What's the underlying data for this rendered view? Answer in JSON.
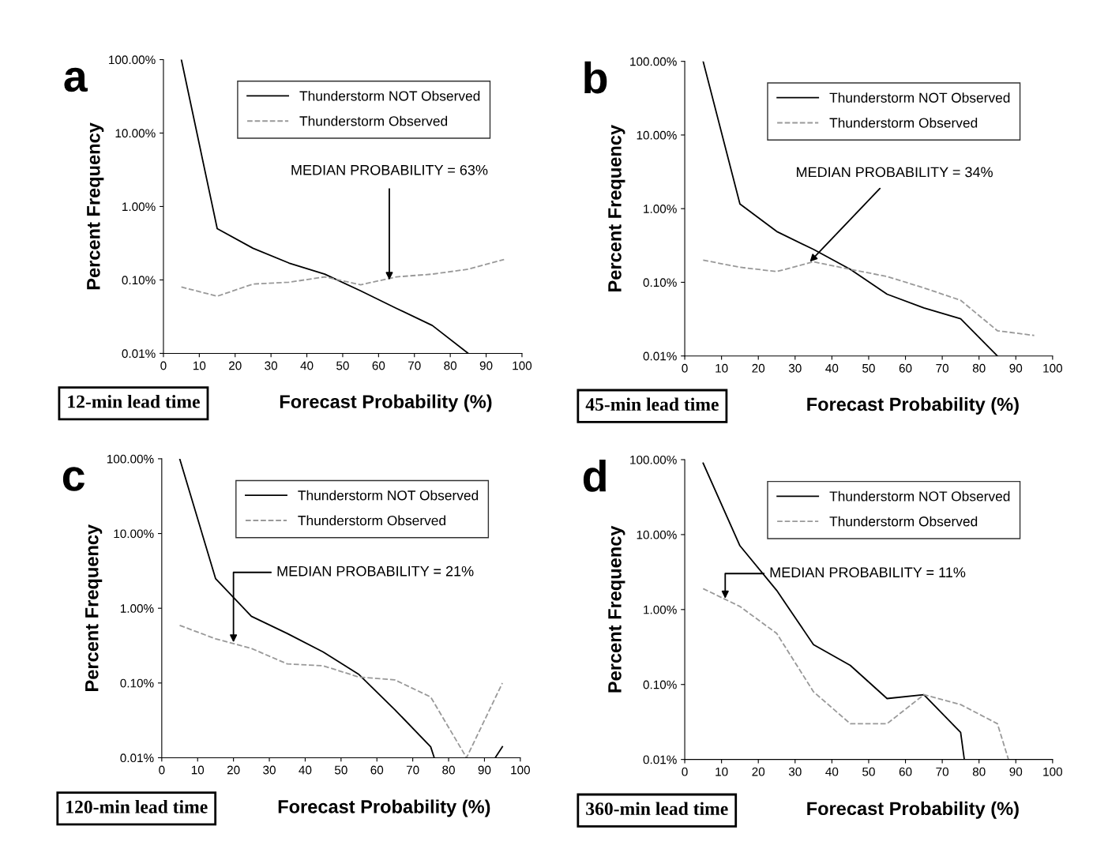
{
  "chart_data": [
    {
      "type": "line",
      "xlabel": "Forecast Probability (%)",
      "ylabel": "Percent Frequency",
      "log": "y",
      "xlim": [
        0,
        100
      ],
      "ylim": [
        0.01,
        100
      ],
      "xticks": [
        0,
        10,
        20,
        30,
        40,
        50,
        60,
        70,
        80,
        90,
        100
      ],
      "yticks": [
        {
          "value": 0.01,
          "label": "0.01%"
        },
        {
          "value": 0.1,
          "label": "0.10%"
        },
        {
          "value": 1,
          "label": "1.00%"
        },
        {
          "value": 10,
          "label": "10.00%"
        },
        {
          "value": 100,
          "label": "100.00%"
        }
      ],
      "grid": false,
      "legend": "top right",
      "series": [
        {
          "name": "Thunderstorm NOT Observed",
          "color": "#000000",
          "line_style": "solid",
          "x": [
            5,
            15,
            25,
            35,
            45,
            55,
            65,
            75,
            85
          ],
          "values": [
            100,
            0.5,
            0.27,
            0.17,
            0.12,
            0.071,
            0.041,
            0.024,
            0.01
          ]
        },
        {
          "name": "Thunderstorm Observed",
          "color": "#999999",
          "line_style": "dashed",
          "x": [
            5,
            15,
            25,
            35,
            45,
            55,
            65,
            75,
            85,
            95
          ],
          "values": [
            0.08,
            0.06,
            0.088,
            0.093,
            0.11,
            0.086,
            0.11,
            0.12,
            0.14,
            0.19
          ]
        }
      ],
      "annotations": [
        "a",
        "12-min lead time",
        {
          "text": "MEDIAN PROBABILITY = 63%",
          "x": 63,
          "y": 0.1
        }
      ]
    },
    {
      "type": "line",
      "xlabel": "Forecast Probability (%)",
      "ylabel": "Percent Frequency",
      "log": "y",
      "xlim": [
        0,
        100
      ],
      "ylim": [
        0.01,
        100
      ],
      "xticks": [
        0,
        10,
        20,
        30,
        40,
        50,
        60,
        70,
        80,
        90,
        100
      ],
      "yticks": [
        {
          "value": 0.01,
          "label": "0.01%"
        },
        {
          "value": 0.1,
          "label": "0.10%"
        },
        {
          "value": 1,
          "label": "1.00%"
        },
        {
          "value": 10,
          "label": "10.00%"
        },
        {
          "value": 100,
          "label": "100.00%"
        }
      ],
      "grid": false,
      "legend": "top right",
      "series": [
        {
          "name": "Thunderstorm NOT Observed",
          "color": "#000000",
          "line_style": "solid",
          "x": [
            5,
            15,
            25,
            35,
            45,
            55,
            65,
            75,
            85
          ],
          "values": [
            100,
            1.16,
            0.49,
            0.28,
            0.15,
            0.069,
            0.045,
            0.032,
            0.01
          ]
        },
        {
          "name": "Thunderstorm Observed",
          "color": "#999999",
          "line_style": "dashed",
          "x": [
            5,
            15,
            25,
            35,
            45,
            55,
            65,
            75,
            85,
            95
          ],
          "values": [
            0.2,
            0.16,
            0.14,
            0.19,
            0.15,
            0.12,
            0.084,
            0.057,
            0.022,
            0.019
          ]
        }
      ],
      "annotations": [
        "b",
        "45-min lead time",
        {
          "text": "MEDIAN PROBABILITY = 34%",
          "x": 34,
          "y": 0.19
        }
      ]
    },
    {
      "type": "line",
      "xlabel": "Forecast Probability (%)",
      "ylabel": "Percent Frequency",
      "log": "y",
      "xlim": [
        0,
        100
      ],
      "ylim": [
        0.01,
        100
      ],
      "xticks": [
        0,
        10,
        20,
        30,
        40,
        50,
        60,
        70,
        80,
        90,
        100
      ],
      "yticks": [
        {
          "value": 0.01,
          "label": "0.01%"
        },
        {
          "value": 0.1,
          "label": "0.10%"
        },
        {
          "value": 1,
          "label": "1.00%"
        },
        {
          "value": 10,
          "label": "10.00%"
        },
        {
          "value": 100,
          "label": "100.00%"
        }
      ],
      "grid": false,
      "legend": "top right",
      "series": [
        {
          "name": "Thunderstorm NOT Observed",
          "color": "#000000",
          "line_style": "solid",
          "x": [
            5,
            15,
            25,
            35,
            45,
            55,
            65,
            75,
            76,
            85,
            93,
            95
          ],
          "values": [
            100,
            2.5,
            0.78,
            0.46,
            0.26,
            0.13,
            0.044,
            0.014,
            0.01,
            null,
            0.01,
            0.014
          ]
        },
        {
          "name": "Thunderstorm Observed",
          "color": "#999999",
          "line_style": "dashed",
          "x": [
            5,
            15,
            25,
            35,
            45,
            55,
            65,
            75,
            85,
            95
          ],
          "values": [
            0.59,
            0.39,
            0.29,
            0.18,
            0.17,
            0.12,
            0.11,
            0.065,
            0.01,
            0.1
          ]
        }
      ],
      "annotations": [
        "c",
        "120-min lead time",
        {
          "text": "MEDIAN PROBABILITY = 21%",
          "x": 20,
          "y": 0.35
        }
      ]
    },
    {
      "type": "line",
      "xlabel": "Forecast Probability (%)",
      "ylabel": "Percent Frequency",
      "log": "y",
      "xlim": [
        0,
        100
      ],
      "ylim": [
        0.01,
        100
      ],
      "xticks": [
        0,
        10,
        20,
        30,
        40,
        50,
        60,
        70,
        80,
        90,
        100
      ],
      "yticks": [
        {
          "value": 0.01,
          "label": "0.01%"
        },
        {
          "value": 0.1,
          "label": "0.10%"
        },
        {
          "value": 1,
          "label": "1.00%"
        },
        {
          "value": 10,
          "label": "10.00%"
        },
        {
          "value": 100,
          "label": "100.00%"
        }
      ],
      "grid": false,
      "legend": "top right",
      "series": [
        {
          "name": "Thunderstorm NOT Observed",
          "color": "#000000",
          "line_style": "solid",
          "x": [
            5,
            15,
            25,
            35,
            45,
            55,
            65,
            75,
            76
          ],
          "values": [
            90,
            7.1,
            1.8,
            0.34,
            0.18,
            0.065,
            0.073,
            0.023,
            0.01
          ]
        },
        {
          "name": "Thunderstorm Observed",
          "color": "#999999",
          "line_style": "dashed",
          "x": [
            5,
            15,
            25,
            35,
            45,
            55,
            65,
            75,
            85,
            88
          ],
          "values": [
            1.9,
            1.1,
            0.48,
            0.08,
            0.03,
            0.03,
            0.073,
            0.054,
            0.03,
            0.01
          ]
        }
      ],
      "annotations": [
        "d",
        "360-min lead time",
        {
          "text": "MEDIAN PROBABILITY = 11%",
          "x": 11,
          "y": 1.4
        }
      ]
    }
  ]
}
